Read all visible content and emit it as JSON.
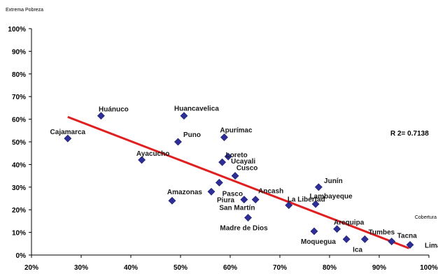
{
  "chart_data": {
    "type": "scatter",
    "ylabel": "Extrema Pobreza",
    "xlabel": "Cobertura",
    "xlim": [
      0.2,
      1.0
    ],
    "ylim": [
      0.0,
      1.0
    ],
    "x_ticks": [
      "20%",
      "30%",
      "40%",
      "50%",
      "60%",
      "70%",
      "80%",
      "90%",
      "100%"
    ],
    "y_ticks": [
      "0%",
      "10%",
      "20%",
      "30%",
      "40%",
      "50%",
      "60%",
      "70%",
      "80%",
      "90%",
      "100%"
    ],
    "grid": false,
    "marker_color": "#2e2e99",
    "trendline_color": "#e02020",
    "r2_label": "R 2= 0.7138",
    "trendline": {
      "x": [
        0.273,
        0.96
      ],
      "y": [
        0.61,
        0.03
      ]
    },
    "points": [
      {
        "label": "Cajamarca",
        "x": 0.273,
        "y": 0.515
      },
      {
        "label": "Huánuco",
        "x": 0.34,
        "y": 0.615
      },
      {
        "label": "Ayacucho",
        "x": 0.422,
        "y": 0.42
      },
      {
        "label": "Amazonas",
        "x": 0.483,
        "y": 0.24
      },
      {
        "label": "Puno",
        "x": 0.495,
        "y": 0.5
      },
      {
        "label": "Huancavelica",
        "x": 0.507,
        "y": 0.615
      },
      {
        "label": "Piura",
        "x": 0.562,
        "y": 0.28
      },
      {
        "label": "Pasco",
        "x": 0.578,
        "y": 0.32
      },
      {
        "label": "Ucayali",
        "x": 0.584,
        "y": 0.41
      },
      {
        "label": "Apurímac",
        "x": 0.588,
        "y": 0.52
      },
      {
        "label": "Loreto",
        "x": 0.596,
        "y": 0.435
      },
      {
        "label": "Cusco",
        "x": 0.61,
        "y": 0.35
      },
      {
        "label": "San Martín",
        "x": 0.628,
        "y": 0.245
      },
      {
        "label": "Madre de Dios",
        "x": 0.636,
        "y": 0.165
      },
      {
        "label": "Ancash",
        "x": 0.651,
        "y": 0.245
      },
      {
        "label": "La Libertad",
        "x": 0.718,
        "y": 0.22
      },
      {
        "label": "Moquegua",
        "x": 0.769,
        "y": 0.105
      },
      {
        "label": "Lambayeque",
        "x": 0.772,
        "y": 0.225
      },
      {
        "label": "Junín",
        "x": 0.778,
        "y": 0.3
      },
      {
        "label": "Arequipa",
        "x": 0.815,
        "y": 0.115
      },
      {
        "label": "Ica",
        "x": 0.834,
        "y": 0.07
      },
      {
        "label": "Tumbes",
        "x": 0.871,
        "y": 0.07
      },
      {
        "label": "Tacna",
        "x": 0.925,
        "y": 0.06
      },
      {
        "label": "Lima",
        "x": 0.962,
        "y": 0.045
      }
    ]
  }
}
